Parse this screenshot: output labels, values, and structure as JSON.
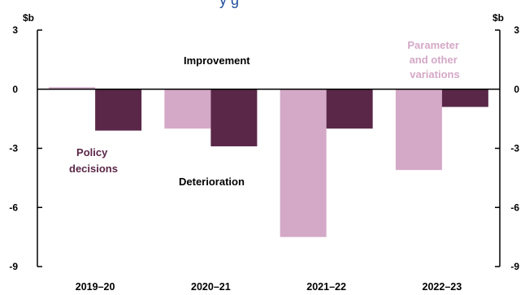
{
  "chart_data": {
    "type": "bar",
    "unit_left": "$b",
    "unit_right": "$b",
    "categories": [
      "2019–20",
      "2020–21",
      "2021–22",
      "2022–23"
    ],
    "ylim": [
      -9,
      3
    ],
    "yticks": [
      "3",
      "0",
      "-3",
      "-6",
      "-9"
    ],
    "grid": false,
    "series": [
      {
        "name": "Parameter and other variations",
        "color": "#d4a8c7",
        "values": [
          0.1,
          -2.0,
          -7.5,
          -4.1
        ]
      },
      {
        "name": "Policy decisions",
        "color": "#5a2748",
        "values": [
          -2.1,
          -2.9,
          -2.0,
          -0.9
        ]
      }
    ],
    "annotations": {
      "improvement": "Improvement",
      "deterioration": "Deterioration",
      "policy_label_line1": "Policy",
      "policy_label_line2": "decisions",
      "parameter_label_line1": "Parameter",
      "parameter_label_line2": "and other",
      "parameter_label_line3": "variations"
    }
  }
}
